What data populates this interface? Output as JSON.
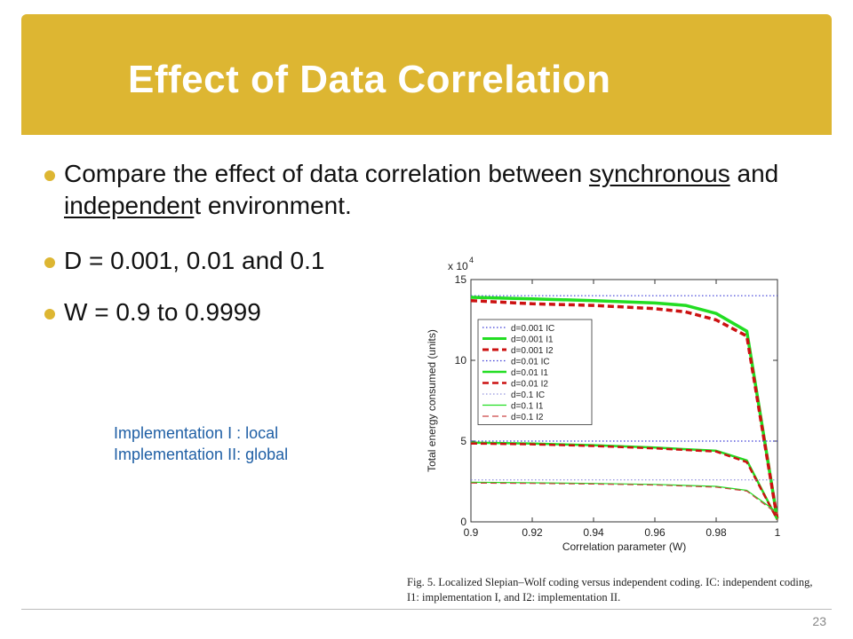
{
  "slide": {
    "title": "Effect of Data Correlation",
    "bullet1_pre": "Compare the effect of data correlation between ",
    "bullet1_u1": "synchronous",
    "bullet1_mid": " and ",
    "bullet1_u2": "independen",
    "bullet1_post": "t environment.",
    "bullet2": "D = 0.001, 0.01 and 0.1",
    "bullet3": "W = 0.9 to 0.9999",
    "impl_line1": "Implementation I : local",
    "impl_line2": "Implementation II: global",
    "caption": "Fig. 5.    Localized Slepian–Wolf coding versus independent coding. IC: independent coding, I1: implementation I, and I2: implementation II.",
    "page_number": "23"
  },
  "colors": {
    "title_bar": "#DDB632",
    "title_text": "#ffffff",
    "bullet_dot": "#DDB632",
    "impl_text": "#1f5fa5"
  },
  "chart_data": {
    "type": "line",
    "xlabel": "Correlation parameter (W)",
    "ylabel": "Total energy consumed (units)",
    "y_multiplier": "x 10",
    "y_multiplier_exp": "4",
    "xlim": [
      0.9,
      1.0
    ],
    "ylim": [
      0,
      15
    ],
    "x_ticks": [
      "0.9",
      "0.92",
      "0.94",
      "0.96",
      "0.98",
      "1"
    ],
    "y_ticks": [
      "0",
      "5",
      "10",
      "15"
    ],
    "legend_position": "left",
    "series": [
      {
        "name": "d=0.001 IC",
        "color": "#3b3bd6",
        "style": "dotted",
        "width": 1.2,
        "x": [
          0.9,
          1.0
        ],
        "y": [
          14.0,
          14.0
        ]
      },
      {
        "name": "d=0.001 I1",
        "color": "#22dd22",
        "style": "solid",
        "width": 3.5,
        "x": [
          0.9,
          0.92,
          0.94,
          0.96,
          0.97,
          0.98,
          0.99,
          0.9999
        ],
        "y": [
          13.9,
          13.8,
          13.7,
          13.55,
          13.4,
          12.9,
          11.8,
          0.2
        ]
      },
      {
        "name": "d=0.001 I2",
        "color": "#cc1111",
        "style": "dashed",
        "width": 3.5,
        "x": [
          0.9,
          0.92,
          0.94,
          0.96,
          0.97,
          0.98,
          0.99,
          0.9999
        ],
        "y": [
          13.7,
          13.5,
          13.4,
          13.2,
          13.0,
          12.5,
          11.5,
          0.2
        ]
      },
      {
        "name": "d=0.01 IC",
        "color": "#3b3bd6",
        "style": "dotted",
        "width": 1.2,
        "x": [
          0.9,
          1.0
        ],
        "y": [
          5.0,
          5.0
        ]
      },
      {
        "name": "d=0.01 I1",
        "color": "#22dd22",
        "style": "solid",
        "width": 2.5,
        "x": [
          0.9,
          0.92,
          0.94,
          0.96,
          0.98,
          0.99,
          0.9999
        ],
        "y": [
          4.9,
          4.85,
          4.75,
          4.6,
          4.4,
          3.8,
          0.15
        ]
      },
      {
        "name": "d=0.01 I2",
        "color": "#cc1111",
        "style": "dashed",
        "width": 2.5,
        "x": [
          0.9,
          0.92,
          0.94,
          0.96,
          0.98,
          0.99,
          0.9999
        ],
        "y": [
          4.85,
          4.8,
          4.7,
          4.55,
          4.35,
          3.7,
          0.15
        ]
      },
      {
        "name": "d=0.1 IC",
        "color": "#7a7ad6",
        "style": "dotted",
        "width": 1,
        "x": [
          0.9,
          1.0
        ],
        "y": [
          2.6,
          2.6
        ]
      },
      {
        "name": "d=0.1 I1",
        "color": "#22dd22",
        "style": "solid",
        "width": 1.2,
        "x": [
          0.9,
          0.92,
          0.94,
          0.96,
          0.98,
          0.99,
          0.9999
        ],
        "y": [
          2.45,
          2.42,
          2.38,
          2.32,
          2.2,
          1.95,
          0.6
        ]
      },
      {
        "name": "d=0.1 I2",
        "color": "#cc4444",
        "style": "dashed",
        "width": 1.2,
        "x": [
          0.9,
          0.92,
          0.94,
          0.96,
          0.98,
          0.99,
          0.9999
        ],
        "y": [
          2.4,
          2.38,
          2.34,
          2.28,
          2.15,
          1.9,
          0.5
        ]
      }
    ]
  }
}
